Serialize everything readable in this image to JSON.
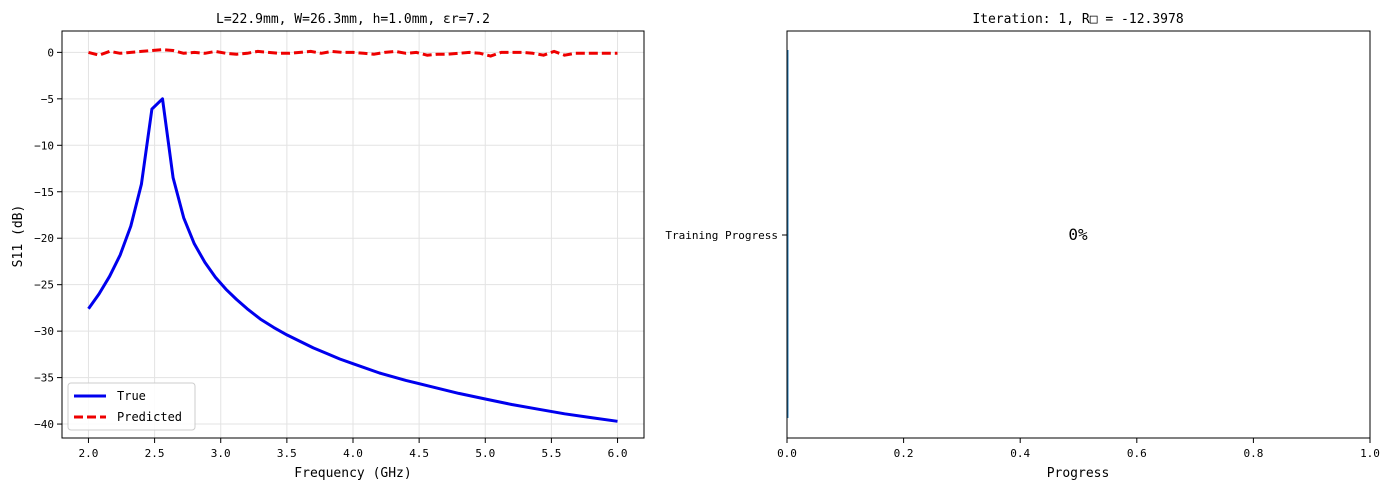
{
  "chart_data": [
    {
      "type": "line",
      "title": "L=22.9mm, W=26.3mm, h=1.0mm, εr=7.2",
      "xlabel": "Frequency (GHz)",
      "ylabel": "S11 (dB)",
      "xlim": [
        1.8,
        6.2
      ],
      "ylim": [
        -41.5,
        2.3
      ],
      "xticks": [
        2.0,
        2.5,
        3.0,
        3.5,
        4.0,
        4.5,
        5.0,
        5.5,
        6.0
      ],
      "xtick_labels": [
        "2.0",
        "2.5",
        "3.0",
        "3.5",
        "4.0",
        "4.5",
        "5.0",
        "5.5",
        "6.0"
      ],
      "yticks": [
        0,
        -5,
        -10,
        -15,
        -20,
        -25,
        -30,
        -35,
        -40
      ],
      "ytick_labels": [
        "0",
        "−5",
        "−10",
        "−15",
        "−20",
        "−25",
        "−30",
        "−35",
        "−40"
      ],
      "grid": true,
      "legend": "lower-left",
      "series": [
        {
          "name": "True",
          "color": "#0000ee",
          "style": "solid",
          "x": [
            2.0,
            2.08,
            2.16,
            2.24,
            2.32,
            2.4,
            2.48,
            2.56,
            2.64,
            2.72,
            2.8,
            2.88,
            2.96,
            3.04,
            3.12,
            3.2,
            3.3,
            3.4,
            3.5,
            3.6,
            3.7,
            3.8,
            3.9,
            4.0,
            4.2,
            4.4,
            4.6,
            4.8,
            5.0,
            5.2,
            5.4,
            5.6,
            5.8,
            6.0
          ],
          "y": [
            -27.6,
            -26.0,
            -24.1,
            -21.8,
            -18.7,
            -14.2,
            -6.1,
            -5.0,
            -13.5,
            -17.8,
            -20.6,
            -22.6,
            -24.2,
            -25.5,
            -26.6,
            -27.6,
            -28.7,
            -29.6,
            -30.4,
            -31.1,
            -31.8,
            -32.4,
            -33.0,
            -33.5,
            -34.5,
            -35.3,
            -36.0,
            -36.7,
            -37.3,
            -37.9,
            -38.4,
            -38.9,
            -39.3,
            -39.7
          ]
        },
        {
          "name": "Predicted",
          "color": "#ee0000",
          "style": "dashed",
          "x": [
            2.0,
            2.08,
            2.16,
            2.24,
            2.32,
            2.4,
            2.48,
            2.56,
            2.64,
            2.72,
            2.8,
            2.88,
            2.96,
            3.04,
            3.12,
            3.2,
            3.28,
            3.36,
            3.44,
            3.52,
            3.6,
            3.68,
            3.76,
            3.84,
            3.92,
            4.0,
            4.08,
            4.16,
            4.24,
            4.32,
            4.4,
            4.48,
            4.56,
            4.64,
            4.72,
            4.8,
            4.88,
            4.96,
            5.04,
            5.12,
            5.2,
            5.28,
            5.36,
            5.44,
            5.52,
            5.6,
            5.68,
            5.76,
            5.84,
            5.92,
            6.0
          ],
          "y": [
            0.0,
            -0.3,
            0.1,
            -0.1,
            0.0,
            0.1,
            0.2,
            0.3,
            0.2,
            -0.1,
            0.0,
            -0.1,
            0.1,
            -0.1,
            -0.2,
            -0.1,
            0.1,
            0.0,
            -0.1,
            -0.1,
            0.0,
            0.1,
            -0.1,
            0.1,
            0.0,
            0.0,
            -0.1,
            -0.2,
            0.0,
            0.1,
            -0.1,
            0.0,
            -0.3,
            -0.2,
            -0.2,
            -0.1,
            0.0,
            -0.1,
            -0.4,
            0.0,
            0.0,
            0.0,
            -0.1,
            -0.3,
            0.1,
            -0.3,
            -0.1,
            -0.1,
            -0.1,
            -0.1,
            -0.1
          ]
        }
      ]
    },
    {
      "type": "bar",
      "orientation": "horizontal",
      "title": "Iteration: 1, R□ = -12.3978",
      "xlabel": "Progress",
      "categories": [
        "Training Progress"
      ],
      "values": [
        0.0
      ],
      "bar_color": "#1f77b4",
      "annotation": "0%",
      "xlim": [
        0.0,
        1.0
      ],
      "xticks": [
        0.0,
        0.2,
        0.4,
        0.6,
        0.8,
        1.0
      ],
      "xtick_labels": [
        "0.0",
        "0.2",
        "0.4",
        "0.6",
        "0.8",
        "1.0"
      ]
    }
  ]
}
